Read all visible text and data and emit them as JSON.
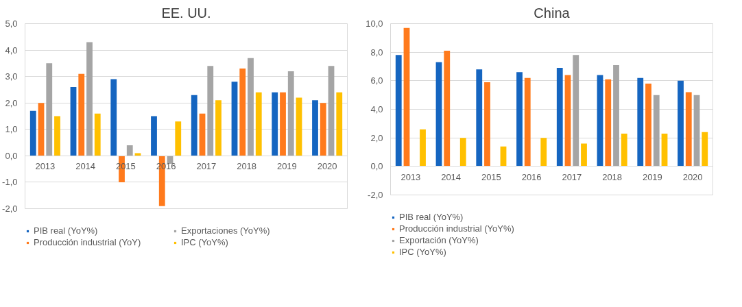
{
  "chart_data": [
    {
      "type": "bar",
      "title": "EE. UU.",
      "categories": [
        "2013",
        "2014",
        "2015",
        "2016",
        "2017",
        "2018",
        "2019",
        "2020"
      ],
      "series": [
        {
          "name": "PIB real (YoY%)",
          "color": "#1565c0",
          "values": [
            1.7,
            2.6,
            2.9,
            1.5,
            2.3,
            2.8,
            2.4,
            2.1
          ]
        },
        {
          "name": "Producción industrial (YoY)",
          "color": "#ff7a1c",
          "values": [
            2.0,
            3.1,
            -1.0,
            -1.9,
            1.6,
            3.3,
            2.4,
            2.0
          ]
        },
        {
          "name": "Exportaciones (YoY%)",
          "color": "#a5a5a5",
          "values": [
            3.5,
            4.3,
            0.4,
            -0.3,
            3.4,
            3.7,
            3.2,
            3.4
          ]
        },
        {
          "name": "IPC (YoY%)",
          "color": "#ffc000",
          "values": [
            1.5,
            1.6,
            0.1,
            1.3,
            2.1,
            2.4,
            2.2,
            2.4
          ]
        }
      ],
      "ylim": [
        -2,
        5
      ],
      "yticks": [
        {
          "value": -2,
          "label": "-2,0"
        },
        {
          "value": -1,
          "label": "-1,0"
        },
        {
          "value": 0,
          "label": "0,0"
        },
        {
          "value": 1,
          "label": "1,0"
        },
        {
          "value": 2,
          "label": "2,0"
        },
        {
          "value": 3,
          "label": "3,0"
        },
        {
          "value": 4,
          "label": "4,0"
        },
        {
          "value": 5,
          "label": "5,0"
        }
      ],
      "grid": "y",
      "legend": "bottom"
    },
    {
      "type": "bar",
      "title": "China",
      "categories": [
        "2013",
        "2014",
        "2015",
        "2016",
        "2017",
        "2018",
        "2019",
        "2020"
      ],
      "series": [
        {
          "name": "PIB real (YoY%)",
          "color": "#1565c0",
          "values": [
            7.8,
            7.3,
            6.8,
            6.6,
            6.9,
            6.4,
            6.2,
            6.0
          ]
        },
        {
          "name": "Producción industrial (YoY%)",
          "color": "#ff7a1c",
          "values": [
            9.7,
            8.1,
            5.9,
            6.2,
            6.4,
            6.1,
            5.8,
            5.2
          ]
        },
        {
          "name": "Exportación (YoY%)",
          "color": "#a5a5a5",
          "values": [
            null,
            null,
            null,
            null,
            7.8,
            7.1,
            5.0,
            5.0
          ]
        },
        {
          "name": "IPC (YoY%)",
          "color": "#ffc000",
          "values": [
            2.6,
            2.0,
            1.4,
            2.0,
            1.6,
            2.3,
            2.3,
            2.4
          ]
        }
      ],
      "ylim": [
        -2,
        10
      ],
      "yticks": [
        {
          "value": -2,
          "label": "-2,0"
        },
        {
          "value": 0,
          "label": "0,0"
        },
        {
          "value": 2,
          "label": "2,0"
        },
        {
          "value": 4,
          "label": "4,0"
        },
        {
          "value": 6,
          "label": "6,0"
        },
        {
          "value": 8,
          "label": "8,0"
        },
        {
          "value": 10,
          "label": "10,0"
        }
      ],
      "grid": "y",
      "legend": "bottom"
    }
  ]
}
